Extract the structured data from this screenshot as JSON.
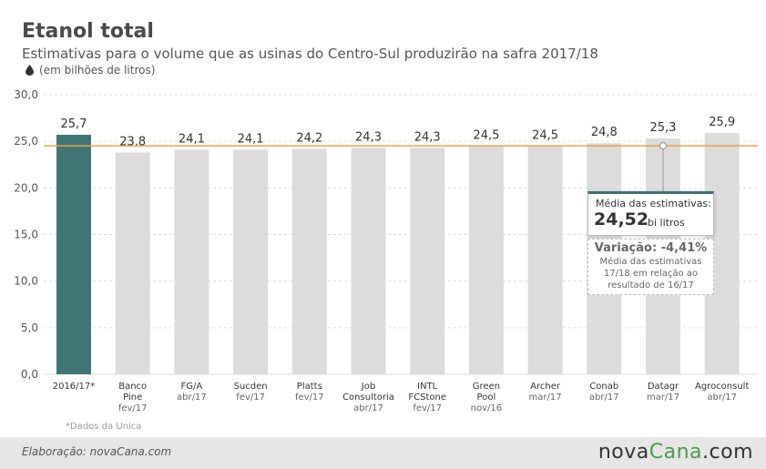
{
  "header": {
    "title": "Etanol total",
    "subtitle": "Estimativas para o volume que as usinas do Centro-Sul produzirão na safra 2017/18",
    "unit": "(em bilhões de litros)"
  },
  "footnote": "*Dados da Unica",
  "footer": {
    "credit": "Elaboração: novaCana.com",
    "logo_prefix": "nova",
    "logo_accent": "Cana",
    "logo_suffix": ".com"
  },
  "callout_mean": {
    "label": "Média das estimativas:",
    "value": "24,52",
    "unit": "bi litros"
  },
  "callout_variation": {
    "title": "Variação: -4,41%",
    "line1": "Média das estimativas",
    "line2": "17/18 em relação ao",
    "line3": "resultado de 16/17"
  },
  "colors": {
    "highlight_bar": "#3f7675",
    "bar": "#dcdcdc",
    "average_line": "#f0a040"
  },
  "chart_data": {
    "type": "bar",
    "title": "Etanol total",
    "ylim": [
      0,
      30
    ],
    "yticks": [
      "0,0",
      "5,0",
      "10,0",
      "15,0",
      "20,0",
      "25,0",
      "30,0"
    ],
    "average": 24.52,
    "categories": [
      {
        "name": [
          "2016/17*"
        ],
        "date": ""
      },
      {
        "name": [
          "Banco",
          "Pine"
        ],
        "date": "fev/17"
      },
      {
        "name": [
          "FG/A"
        ],
        "date": "abr/17"
      },
      {
        "name": [
          "Sucden"
        ],
        "date": "fev/17"
      },
      {
        "name": [
          "Platts"
        ],
        "date": "fev/17"
      },
      {
        "name": [
          "Job",
          "Consultoria"
        ],
        "date": "abr/17"
      },
      {
        "name": [
          "INTL",
          "FCStone"
        ],
        "date": "fev/17"
      },
      {
        "name": [
          "Green",
          "Pool"
        ],
        "date": "nov/16"
      },
      {
        "name": [
          "Archer"
        ],
        "date": "mar/17"
      },
      {
        "name": [
          "Conab"
        ],
        "date": "abr/17"
      },
      {
        "name": [
          "Datagr"
        ],
        "date": "mar/17"
      },
      {
        "name": [
          "Agroconsult"
        ],
        "date": "abr/17"
      }
    ],
    "values": [
      25.7,
      23.8,
      24.1,
      24.1,
      24.2,
      24.3,
      24.3,
      24.5,
      24.5,
      24.8,
      25.3,
      25.9
    ],
    "value_labels": [
      "25,7",
      "23,8",
      "24,1",
      "24,1",
      "24,2",
      "24,3",
      "24,3",
      "24,5",
      "24,5",
      "24,8",
      "25,3",
      "25,9"
    ]
  }
}
